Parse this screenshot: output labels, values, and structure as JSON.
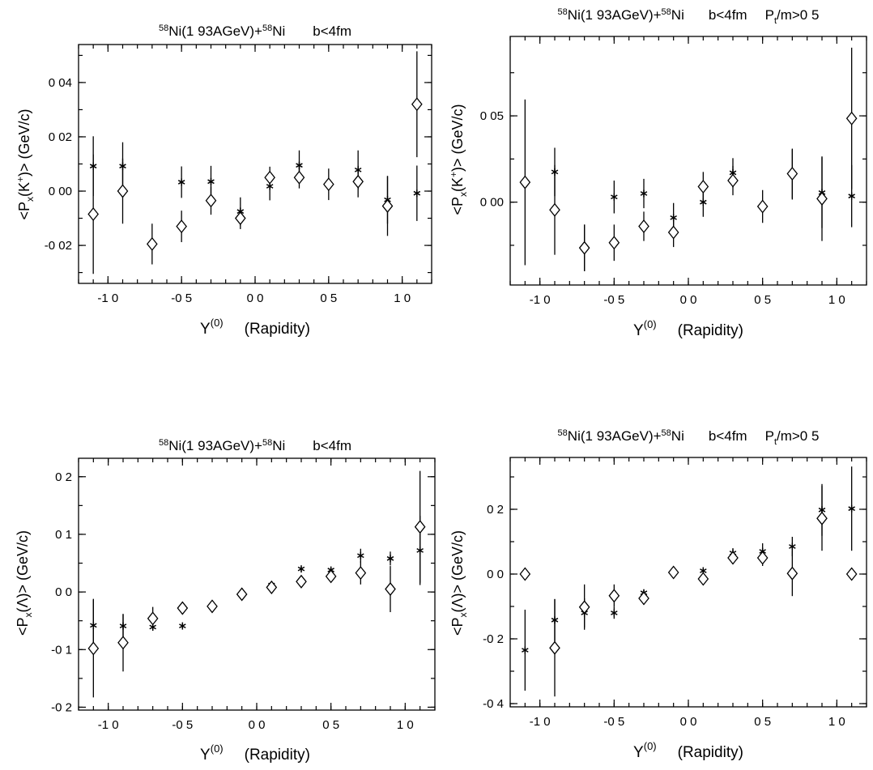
{
  "chart_data": [
    {
      "type": "scatter",
      "title": "58Ni(1 93AGeV)+58Ni b<4fm",
      "title_parts": [
        "58",
        "Ni(1 93AGeV)+",
        "58",
        "Ni",
        "b<4fm",
        ""
      ],
      "ylabel_parts": [
        "<P",
        "x",
        "(K",
        "+",
        ")>  (GeV/c)"
      ],
      "xlabel_parts": [
        "Y",
        "(0)",
        "(Rapidity)"
      ],
      "xlim": [
        -1.2,
        1.2
      ],
      "ylim": [
        -0.034,
        0.054
      ],
      "xticks": [
        -1.0,
        -0.5,
        0.0,
        0.5,
        1.0
      ],
      "xtick_labels": [
        "-1 0",
        "-0 5",
        "0 0",
        "0 5",
        "1 0"
      ],
      "yticks": [
        -0.02,
        0.0,
        0.02,
        0.04
      ],
      "ytick_labels": [
        "-0 02",
        "0 00",
        "0 02",
        "0 04"
      ],
      "series": [
        {
          "marker": "star",
          "x": [
            -1.1,
            -0.9,
            -0.5,
            -0.3,
            -0.1,
            0.1,
            0.3,
            0.7,
            0.9,
            1.1
          ],
          "y": [
            0.0092,
            0.0092,
            0.0033,
            0.0035,
            -0.0075,
            0.0018,
            0.0095,
            0.0078,
            -0.0032,
            -0.0008
          ],
          "yerr": [
            0.011,
            0.0088,
            0.0058,
            0.0058,
            0.0052,
            0.0052,
            0.0055,
            0.0072,
            0.0088,
            0.0102
          ]
        },
        {
          "marker": "diamond",
          "x": [
            -1.1,
            -0.9,
            -0.7,
            -0.5,
            -0.3,
            -0.1,
            0.1,
            0.3,
            0.5,
            0.7,
            0.9,
            1.1
          ],
          "y": [
            -0.0085,
            0.0,
            -0.0195,
            -0.013,
            -0.0035,
            -0.01,
            0.005,
            0.005,
            0.0025,
            0.0035,
            -0.0055,
            0.032
          ],
          "yerr": [
            0.022,
            0.012,
            0.0075,
            0.0058,
            0.0052,
            0.004,
            0.004,
            0.004,
            0.0058,
            0.0058,
            0.011,
            0.0195
          ]
        }
      ]
    },
    {
      "type": "scatter",
      "title": "58Ni(1 93AGeV)+58Ni b<4fm Pt/m>0 5",
      "title_parts": [
        "58",
        "Ni(1 93AGeV)+",
        "58",
        "Ni",
        "b<4fm",
        "P",
        "t",
        "/m>0 5"
      ],
      "ylabel_parts": [
        "<P",
        "x",
        "(K",
        "+",
        ")>  (GeV/c)"
      ],
      "xlabel_parts": [
        "Y",
        "(0)",
        "(Rapidity)"
      ],
      "xlim": [
        -1.2,
        1.2
      ],
      "ylim": [
        -0.048,
        0.096
      ],
      "xticks": [
        -1.0,
        -0.5,
        0.0,
        0.5,
        1.0
      ],
      "xtick_labels": [
        "-1 0",
        "-0 5",
        "0 0",
        "0 5",
        "1 0"
      ],
      "yticks": [
        0.0,
        0.05
      ],
      "ytick_labels": [
        "0 00",
        "0 05"
      ],
      "series": [
        {
          "marker": "star",
          "x": [
            -0.9,
            -0.7,
            -0.5,
            -0.3,
            -0.1,
            0.1,
            0.3,
            0.7,
            0.9,
            1.1
          ],
          "y": [
            0.0175,
            -0.0265,
            0.003,
            0.005,
            -0.009,
            0.0,
            0.017,
            0.016,
            0.0055,
            0.0035
          ],
          "yerr": [
            0.014,
            0.0135,
            0.0095,
            0.0085,
            0.0085,
            0.0085,
            0.0085,
            0.0145,
            0.0205,
            0.018
          ]
        },
        {
          "marker": "diamond",
          "x": [
            -1.1,
            -0.9,
            -0.7,
            -0.5,
            -0.3,
            -0.1,
            0.1,
            0.3,
            0.5,
            0.7,
            0.9,
            1.1
          ],
          "y": [
            0.0115,
            -0.0045,
            -0.0265,
            -0.0235,
            -0.014,
            -0.0175,
            0.009,
            0.0125,
            -0.0025,
            0.0165,
            0.002,
            0.0485
          ],
          "yerr": [
            0.048,
            0.026,
            0.0135,
            0.0105,
            0.0085,
            0.0085,
            0.0085,
            0.0085,
            0.0095,
            0.0145,
            0.0245,
            0.041
          ]
        }
      ]
    },
    {
      "type": "scatter",
      "title": "58Ni(1 93AGeV)+58Ni b<4fm",
      "title_parts": [
        "58",
        "Ni(1 93AGeV)+",
        "58",
        "Ni",
        "b<4fm",
        ""
      ],
      "ylabel_parts": [
        "<P",
        "x",
        "(Λ)>  (GeV/c)",
        "",
        ""
      ],
      "xlabel_parts": [
        "Y",
        "(0)",
        "(Rapidity)"
      ],
      "xlim": [
        -1.2,
        1.2
      ],
      "ylim": [
        -0.205,
        0.232
      ],
      "xticks": [
        -1.0,
        -0.5,
        0.0,
        0.5,
        1.0
      ],
      "xtick_labels": [
        "-1 0",
        "-0 5",
        "0 0",
        "0 5",
        "1 0"
      ],
      "yticks": [
        -0.2,
        -0.1,
        0.0,
        0.1,
        0.2
      ],
      "ytick_labels": [
        "-0 2",
        "-0 1",
        "0 0",
        "0 1",
        "0 2"
      ],
      "series": [
        {
          "marker": "star",
          "x": [
            -1.1,
            -0.9,
            -0.7,
            -0.5,
            0.1,
            0.3,
            0.5,
            0.7,
            0.9,
            1.1
          ],
          "y": [
            -0.058,
            -0.059,
            -0.061,
            -0.059,
            0.012,
            0.04,
            0.038,
            0.063,
            0.058,
            0.072
          ],
          "yerr": [
            0.046,
            0.02,
            0.006,
            0.004,
            0.004,
            0.004,
            0.005,
            0.012,
            0.012,
            0.06
          ]
        },
        {
          "marker": "diamond",
          "x": [
            -1.1,
            -0.9,
            -0.7,
            -0.5,
            -0.3,
            -0.1,
            0.1,
            0.3,
            0.5,
            0.7,
            0.9,
            1.1
          ],
          "y": [
            -0.098,
            -0.088,
            -0.046,
            -0.028,
            -0.025,
            -0.004,
            0.008,
            0.018,
            0.027,
            0.033,
            0.005,
            0.113
          ],
          "yerr": [
            0.085,
            0.05,
            0.02,
            0.006,
            0.005,
            0.004,
            0.005,
            0.006,
            0.008,
            0.02,
            0.04,
            0.097
          ]
        }
      ]
    },
    {
      "type": "scatter",
      "title": "58Ni(1 93AGeV)+58Ni b<4fm Pt/m>0 5",
      "title_parts": [
        "58",
        "Ni(1 93AGeV)+",
        "58",
        "Ni",
        "b<4fm",
        "P",
        "t",
        "/m>0 5"
      ],
      "ylabel_parts": [
        "<P",
        "x",
        "(Λ)>  (GeV/c)",
        "",
        ""
      ],
      "xlabel_parts": [
        "Y",
        "(0)",
        "(Rapidity)"
      ],
      "xlim": [
        -1.2,
        1.2
      ],
      "ylim": [
        -0.41,
        0.36
      ],
      "xticks": [
        -1.0,
        -0.5,
        0.0,
        0.5,
        1.0
      ],
      "xtick_labels": [
        "-1 0",
        "-0 5",
        "0 0",
        "0 5",
        "1 0"
      ],
      "yticks": [
        -0.4,
        -0.2,
        0.0,
        0.2
      ],
      "ytick_labels": [
        "-0 4",
        "-0 2",
        "0 0",
        "0 2"
      ],
      "series": [
        {
          "marker": "star",
          "x": [
            -1.1,
            -0.9,
            -0.7,
            -0.5,
            -0.3,
            0.1,
            0.3,
            0.5,
            0.7,
            0.9,
            1.1
          ],
          "y": [
            -0.235,
            -0.142,
            -0.12,
            -0.12,
            -0.058,
            0.01,
            0.065,
            0.07,
            0.085,
            0.198,
            0.202
          ],
          "yerr": [
            0.125,
            0.065,
            0.045,
            0.018,
            0.01,
            0.01,
            0.015,
            0.025,
            0.03,
            0.08,
            0.13
          ]
        },
        {
          "marker": "diamond",
          "x": [
            -1.1,
            -0.9,
            -0.7,
            -0.5,
            -0.3,
            -0.1,
            0.1,
            0.3,
            0.5,
            0.7,
            0.9,
            1.1
          ],
          "y": [
            0.0,
            -0.228,
            -0.102,
            -0.067,
            -0.075,
            0.005,
            -0.015,
            0.05,
            0.05,
            0.002,
            0.172,
            0.0
          ],
          "yerr": [
            0.0,
            0.15,
            0.07,
            0.035,
            0.02,
            0.01,
            0.012,
            0.02,
            0.025,
            0.07,
            0.1,
            0.0
          ]
        }
      ]
    }
  ]
}
